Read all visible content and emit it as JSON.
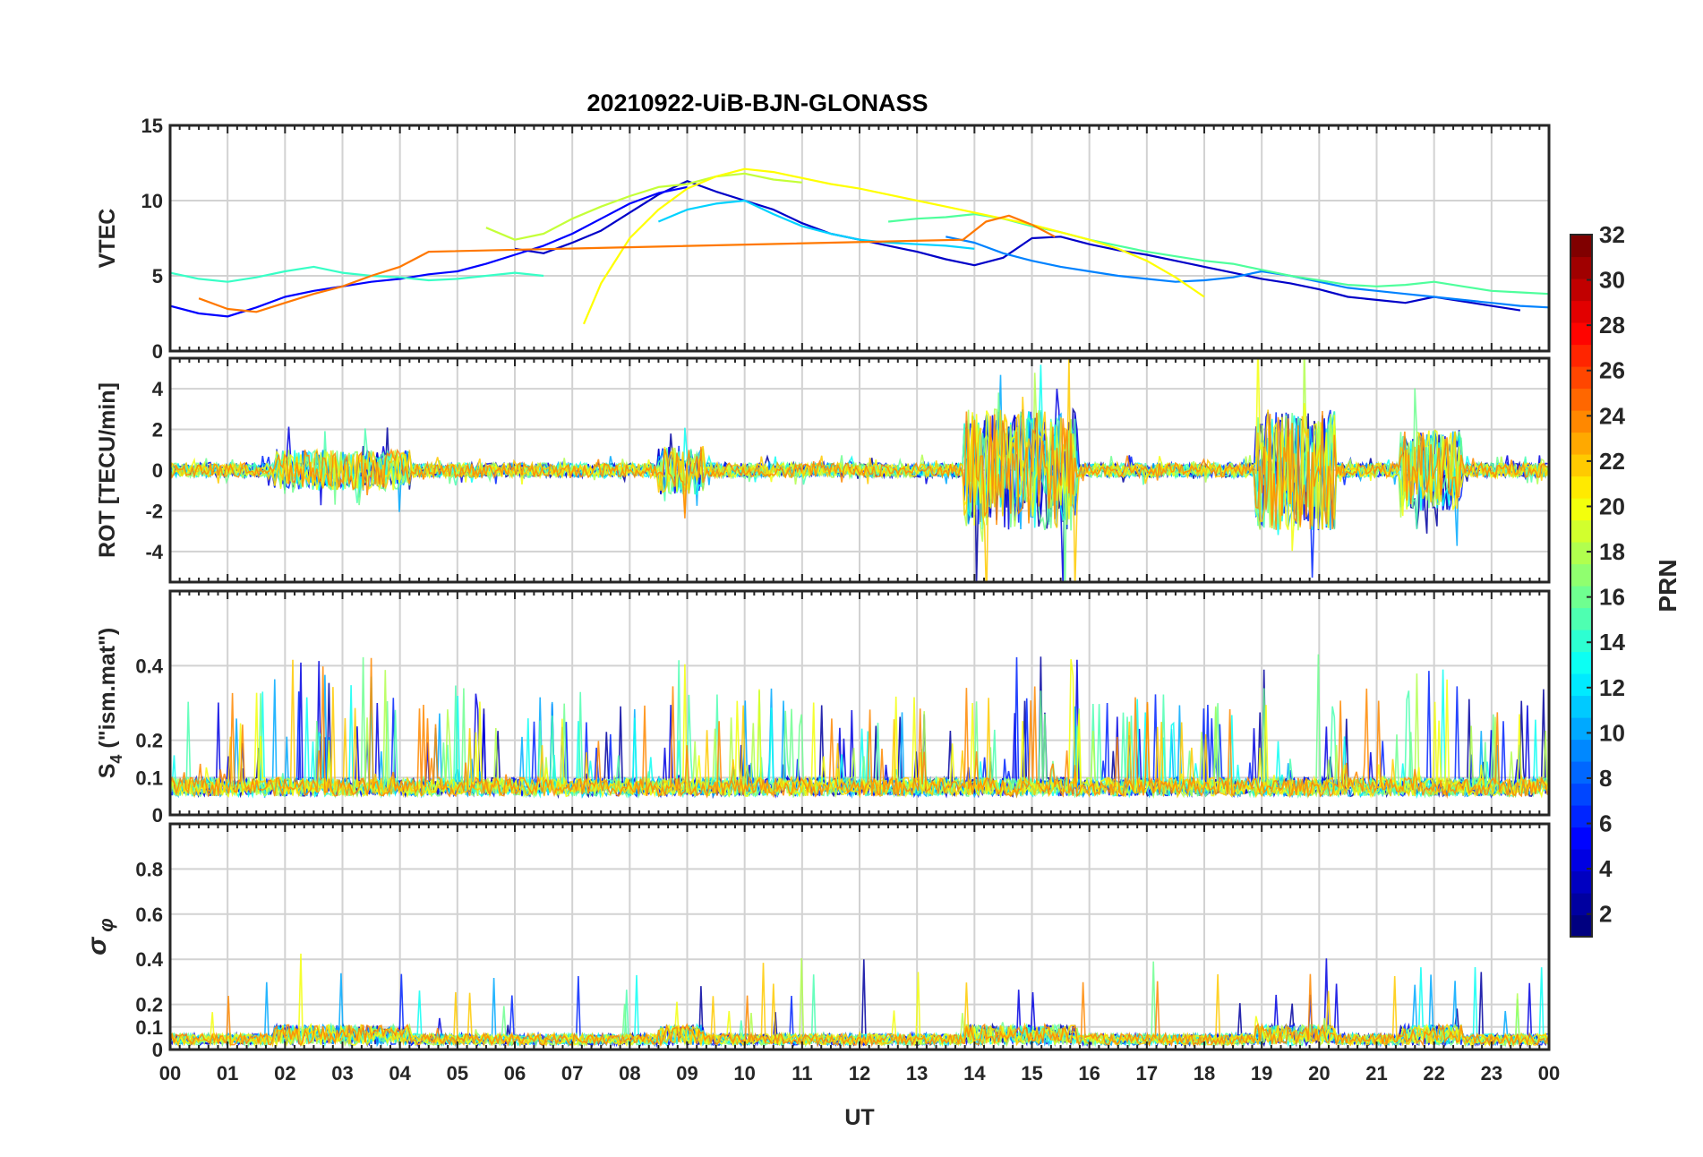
{
  "chart_data": {
    "type": "line",
    "title": "20210922-UiB-BJN-GLONASS",
    "xlabel": "UT",
    "x_ticks": [
      "00",
      "01",
      "02",
      "03",
      "04",
      "05",
      "06",
      "07",
      "08",
      "09",
      "10",
      "11",
      "12",
      "13",
      "14",
      "15",
      "16",
      "17",
      "18",
      "19",
      "20",
      "21",
      "22",
      "23",
      "00"
    ],
    "xlim": [
      0,
      24
    ],
    "grid": true,
    "colorbar": {
      "label": "PRN",
      "range": [
        1,
        32
      ],
      "ticks": [
        "2",
        "4",
        "6",
        "8",
        "10",
        "12",
        "14",
        "16",
        "18",
        "20",
        "22",
        "24",
        "26",
        "28",
        "30",
        "32"
      ],
      "colormap": "jet"
    },
    "panels": [
      {
        "ylabel": "VTEC",
        "ylim": [
          0,
          15
        ],
        "y_ticks": [
          "0",
          "5",
          "10",
          "15"
        ],
        "series": [
          {
            "prn": 2,
            "color": "#0000c8",
            "x": [
              6.0,
              6.5,
              7.0,
              7.5,
              8.0,
              8.5,
              9.0,
              9.5,
              10.0,
              10.5,
              11.0,
              11.5,
              12.0,
              12.5,
              13.0,
              13.5,
              14.0,
              14.5,
              15.0,
              15.5,
              16.0,
              16.5,
              17.0,
              17.5,
              18.0,
              18.5,
              19.0,
              19.5,
              20.0,
              20.5,
              21.0,
              21.5,
              22.0,
              22.5,
              23.0,
              23.5
            ],
            "y": [
              6.8,
              6.5,
              7.2,
              8.0,
              9.2,
              10.4,
              11.3,
              10.6,
              10.0,
              9.4,
              8.5,
              7.8,
              7.4,
              7.0,
              6.6,
              6.1,
              5.7,
              6.2,
              7.5,
              7.6,
              7.1,
              6.7,
              6.4,
              6.0,
              5.6,
              5.2,
              4.8,
              4.5,
              4.1,
              3.6,
              3.4,
              3.2,
              3.6,
              3.3,
              3.0,
              2.7
            ]
          },
          {
            "prn": 4,
            "color": "#0000ff",
            "x": [
              0.0,
              0.5,
              1.0,
              1.5,
              2.0,
              2.5,
              3.0,
              3.5,
              4.0,
              4.5,
              5.0,
              5.5,
              6.0,
              6.5,
              7.0,
              7.5,
              8.0,
              8.5,
              9.0
            ],
            "y": [
              3.0,
              2.5,
              2.3,
              2.9,
              3.6,
              4.0,
              4.3,
              4.6,
              4.8,
              5.1,
              5.3,
              5.8,
              6.4,
              7.0,
              7.8,
              8.8,
              9.8,
              10.5,
              10.9
            ]
          },
          {
            "prn": 10,
            "color": "#0082ff",
            "x": [
              13.5,
              14.0,
              14.5,
              15.0,
              15.5,
              16.0,
              16.5,
              17.0,
              17.5,
              18.0,
              18.5,
              19.0,
              19.5,
              20.0,
              20.5,
              21.0,
              21.5,
              22.0,
              22.5,
              23.0,
              23.5,
              24.0
            ],
            "y": [
              7.6,
              7.2,
              6.5,
              6.0,
              5.6,
              5.3,
              5.0,
              4.8,
              4.6,
              4.7,
              4.9,
              5.3,
              5.0,
              4.6,
              4.2,
              4.0,
              3.8,
              3.6,
              3.4,
              3.2,
              3.0,
              2.9
            ]
          },
          {
            "prn": 13,
            "color": "#00d2ff",
            "x": [
              8.5,
              9.0,
              9.5,
              10.0,
              10.5,
              11.0,
              11.5,
              12.0,
              12.5,
              13.0,
              13.5,
              14.0
            ],
            "y": [
              8.6,
              9.4,
              9.8,
              10.0,
              9.1,
              8.3,
              7.8,
              7.4,
              7.2,
              7.1,
              7.0,
              6.8
            ]
          },
          {
            "prn": 15,
            "color": "#38ffc6",
            "x": [
              0.0,
              0.5,
              1.0,
              1.5,
              2.0,
              2.5,
              3.0,
              3.5,
              4.0,
              4.5,
              5.0,
              5.5,
              6.0,
              6.5
            ],
            "y": [
              5.2,
              4.8,
              4.6,
              4.9,
              5.3,
              5.6,
              5.2,
              5.0,
              4.9,
              4.7,
              4.8,
              5.0,
              5.2,
              5.0
            ]
          },
          {
            "prn": 16,
            "color": "#4eff9c",
            "x": [
              12.5,
              13.0,
              13.5,
              14.0,
              14.5,
              15.0,
              15.5,
              16.0,
              16.5,
              17.0,
              17.5,
              18.0,
              18.5,
              19.0,
              19.5,
              20.0,
              20.5,
              21.0,
              21.5,
              22.0,
              22.5,
              23.0,
              23.5,
              24.0
            ],
            "y": [
              8.6,
              8.8,
              8.9,
              9.1,
              8.8,
              8.3,
              7.9,
              7.4,
              7.0,
              6.6,
              6.3,
              6.0,
              5.8,
              5.4,
              5.0,
              4.7,
              4.4,
              4.3,
              4.4,
              4.6,
              4.3,
              4.0,
              3.9,
              3.8
            ]
          },
          {
            "prn": 18,
            "color": "#c4ff38",
            "x": [
              5.5,
              6.0,
              6.5,
              7.0,
              7.5,
              8.0,
              8.5,
              9.0,
              9.5,
              10.0,
              10.5,
              11.0
            ],
            "y": [
              8.2,
              7.4,
              7.8,
              8.8,
              9.6,
              10.3,
              10.9,
              11.1,
              11.6,
              11.8,
              11.4,
              11.2
            ]
          },
          {
            "prn": 20,
            "color": "#ffff00",
            "x": [
              7.2,
              7.5,
              8.0,
              8.5,
              9.0,
              9.5,
              10.0,
              10.5,
              11.0,
              11.5,
              12.0,
              12.5,
              13.0,
              13.5,
              14.0,
              14.5,
              15.0,
              15.5,
              16.0,
              16.5,
              17.0,
              17.5,
              18.0
            ],
            "y": [
              1.8,
              4.5,
              7.5,
              9.4,
              10.8,
              11.6,
              12.1,
              11.9,
              11.5,
              11.1,
              10.8,
              10.4,
              10.0,
              9.6,
              9.2,
              8.8,
              8.4,
              7.9,
              7.4,
              6.8,
              6.0,
              4.9,
              3.6
            ]
          },
          {
            "prn": 24,
            "color": "#ff7800",
            "x": [
              0.5,
              1.0,
              1.5,
              2.0,
              2.5,
              3.0,
              3.5,
              4.0,
              4.5,
              13.8,
              14.2,
              14.6,
              15.0,
              15.4
            ],
            "y": [
              3.5,
              2.8,
              2.6,
              3.2,
              3.8,
              4.3,
              5.0,
              5.6,
              6.6,
              7.4,
              8.6,
              9.0,
              8.4,
              7.6
            ]
          }
        ]
      },
      {
        "ylabel": "ROT [TECU/min]",
        "ylim": [
          -5.5,
          5.5
        ],
        "y_ticks": [
          "-4",
          "-2",
          "0",
          "2",
          "4"
        ]
      },
      {
        "ylabel": "S4 (\"ism.mat\")",
        "ylim": [
          0,
          0.6
        ],
        "y_ticks": [
          "0",
          "0.1",
          "0.2",
          "0.4"
        ]
      },
      {
        "ylabel": "σ φ",
        "ylim": [
          0,
          1.0
        ],
        "y_ticks": [
          "0",
          "0.1",
          "0.2",
          "0.4",
          "0.6",
          "0.8"
        ]
      }
    ]
  }
}
